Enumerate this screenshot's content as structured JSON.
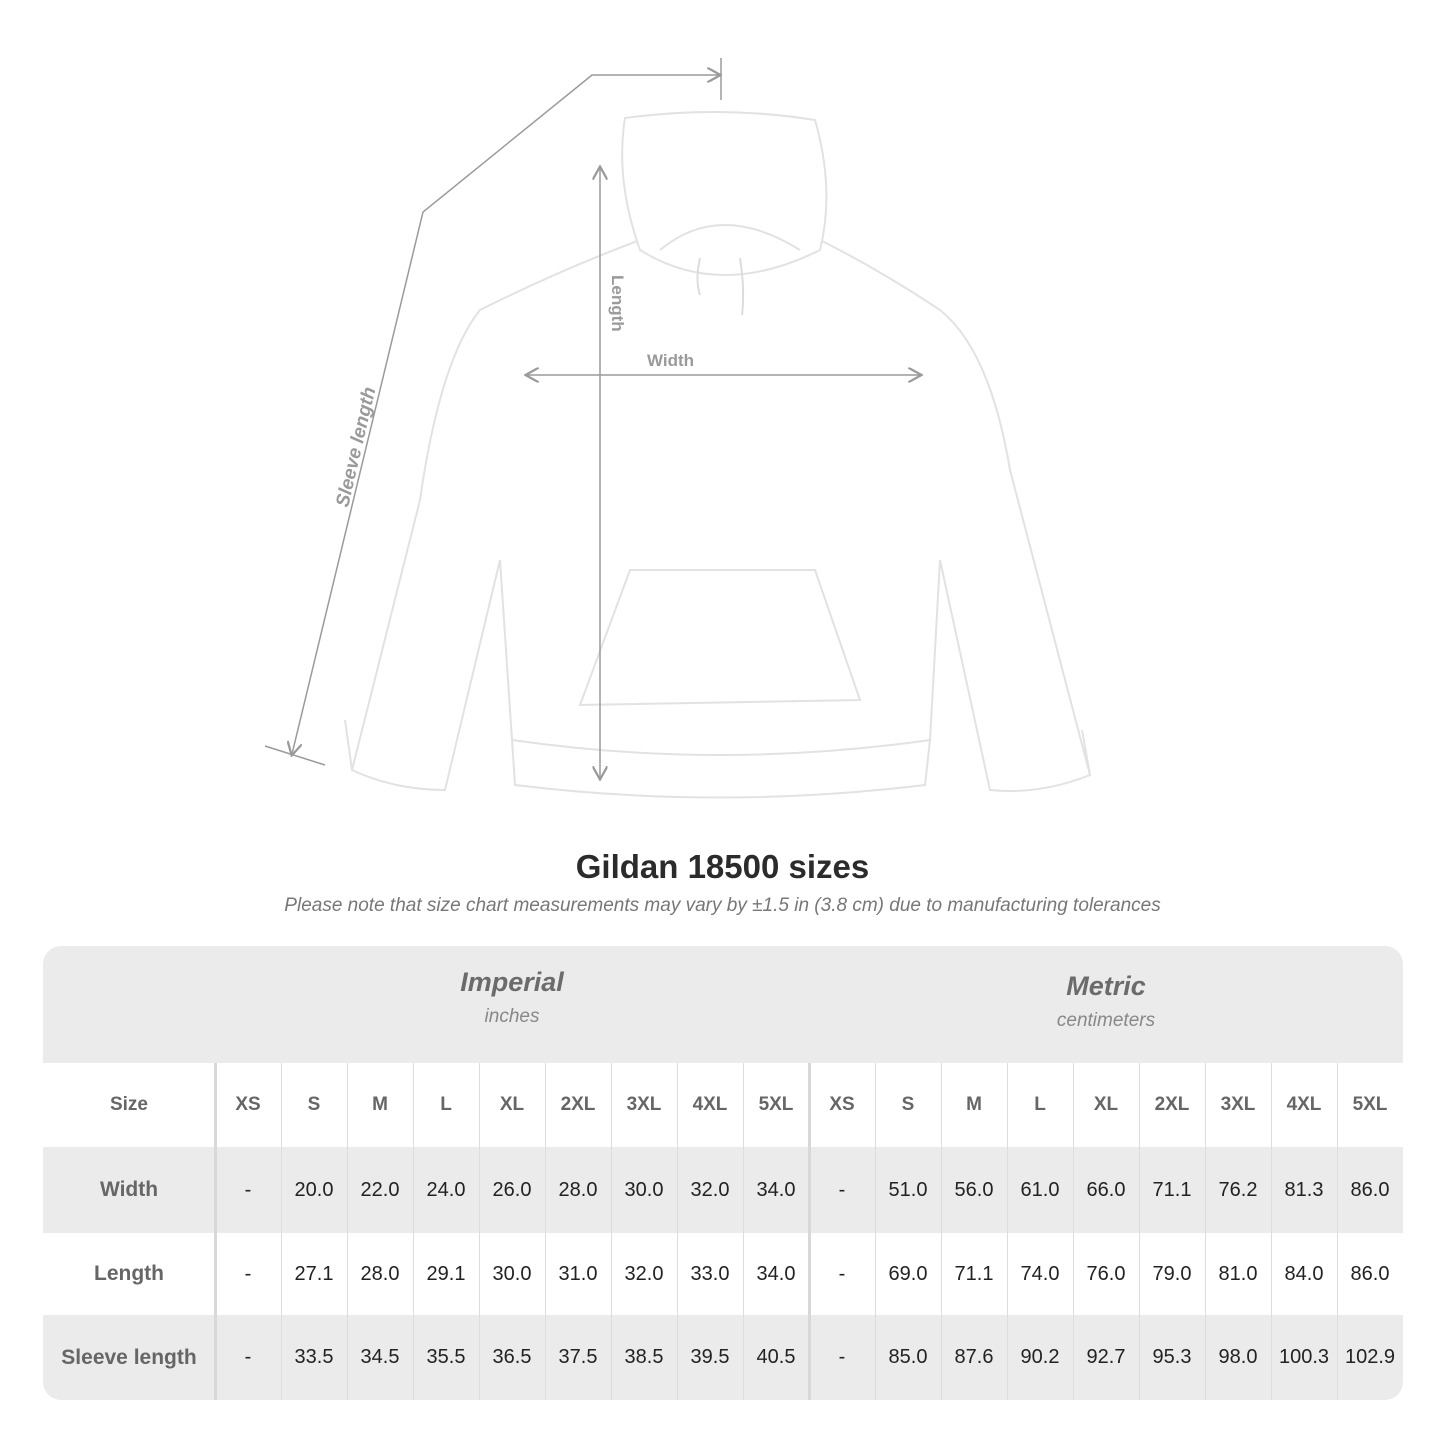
{
  "diagram": {
    "labels": {
      "sleeve": "Sleeve length",
      "length": "Length",
      "width": "Width"
    },
    "garment_color": "#ffffff",
    "line_color": "#9a9a9a"
  },
  "header": {
    "title": "Gildan 18500 sizes",
    "note": "Please note that size chart measurements may vary by ±1.5 in (3.8 cm) due to manufacturing tolerances"
  },
  "table": {
    "imperial": {
      "name": "Imperial",
      "unit": "inches"
    },
    "metric": {
      "name": "Metric",
      "unit": "centimeters"
    },
    "size_label": "Size",
    "sizes": [
      "XS",
      "S",
      "M",
      "L",
      "XL",
      "2XL",
      "3XL",
      "4XL",
      "5XL"
    ],
    "rows": [
      {
        "label": "Width",
        "imperial": [
          "-",
          "20.0",
          "22.0",
          "24.0",
          "26.0",
          "28.0",
          "30.0",
          "32.0",
          "34.0"
        ],
        "metric": [
          "-",
          "51.0",
          "56.0",
          "61.0",
          "66.0",
          "71.1",
          "76.2",
          "81.3",
          "86.0"
        ]
      },
      {
        "label": "Length",
        "imperial": [
          "-",
          "27.1",
          "28.0",
          "29.1",
          "30.0",
          "31.0",
          "32.0",
          "33.0",
          "34.0"
        ],
        "metric": [
          "-",
          "69.0",
          "71.1",
          "74.0",
          "76.0",
          "79.0",
          "81.0",
          "84.0",
          "86.0"
        ]
      },
      {
        "label": "Sleeve length",
        "imperial": [
          "-",
          "33.5",
          "34.5",
          "35.5",
          "36.5",
          "37.5",
          "38.5",
          "39.5",
          "40.5"
        ],
        "metric": [
          "-",
          "85.0",
          "87.6",
          "90.2",
          "92.7",
          "95.3",
          "98.0",
          "100.3",
          "102.9"
        ]
      }
    ],
    "band_color": "#ebebeb"
  }
}
